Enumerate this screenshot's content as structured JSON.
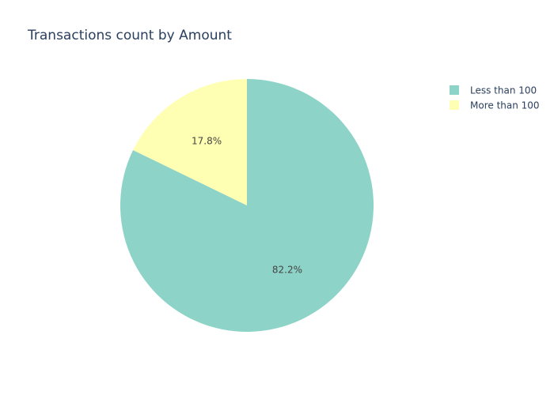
{
  "chart_data": {
    "type": "pie",
    "title": "Transactions count by Amount",
    "categories": [
      "Less than 100",
      "More than 100"
    ],
    "values": [
      82.2,
      17.8
    ],
    "value_labels": [
      "82.2%",
      "17.8%"
    ],
    "colors": [
      "#8dd3c7",
      "#ffffb3"
    ],
    "start_angle_deg": 90,
    "direction": "clockwise",
    "legend": {
      "position": "top-right",
      "entries": [
        "Less than 100",
        "More than 100"
      ]
    }
  }
}
